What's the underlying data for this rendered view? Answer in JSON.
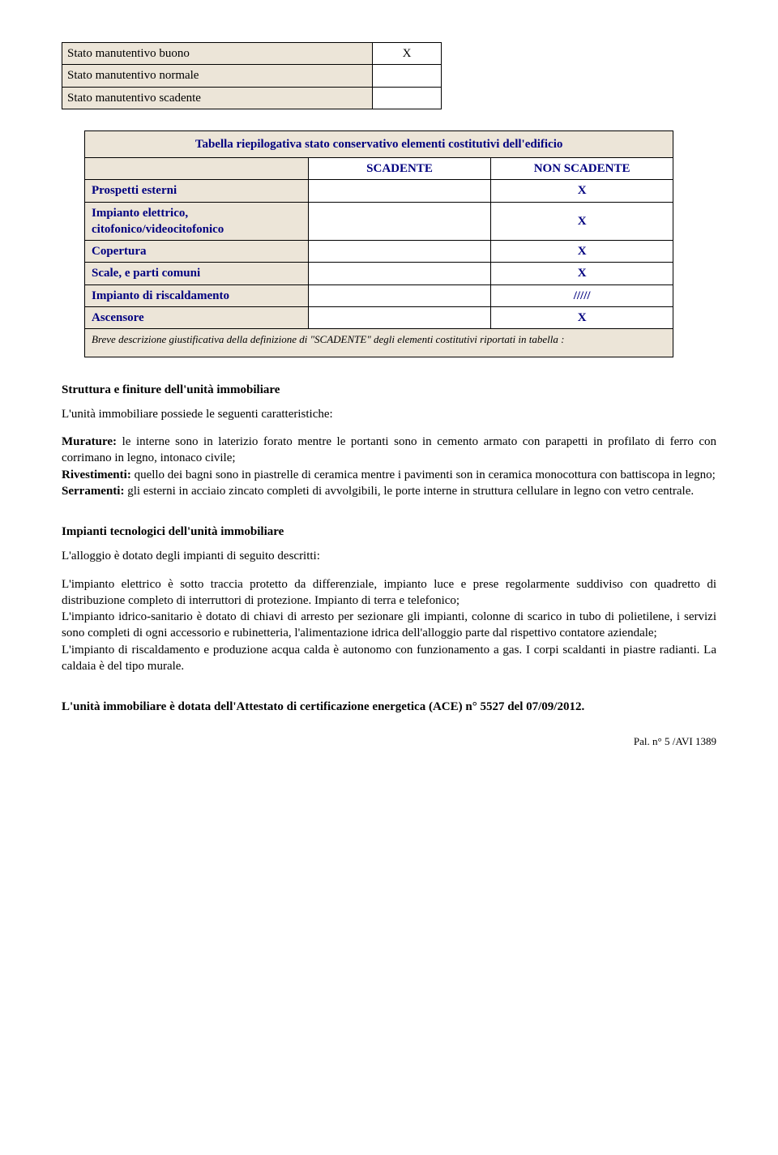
{
  "stato_table": {
    "rows": [
      {
        "label": "Stato manutentivo buono",
        "value": "X"
      },
      {
        "label": "Stato manutentivo normale",
        "value": ""
      },
      {
        "label": "Stato manutentivo scadente",
        "value": ""
      }
    ]
  },
  "riep_table": {
    "title": "Tabella riepilogativa stato conservativo elementi costitutivi dell'edificio",
    "col_scadente": "SCADENTE",
    "col_non_scadente": "NON SCADENTE",
    "rows": [
      {
        "label": "Prospetti esterni",
        "scadente": "",
        "non_scadente": "X"
      },
      {
        "label": "Impianto elettrico, citofonico/videocitofonico",
        "scadente": "",
        "non_scadente": "X"
      },
      {
        "label": "Copertura",
        "scadente": "",
        "non_scadente": "X"
      },
      {
        "label": "Scale, e parti comuni",
        "scadente": "",
        "non_scadente": "X"
      },
      {
        "label": "Impianto di riscaldamento",
        "scadente": "",
        "non_scadente": "/////"
      },
      {
        "label": "Ascensore",
        "scadente": "",
        "non_scadente": "X"
      }
    ],
    "note": "Breve descrizione giustificativa della definizione di \"SCADENTE\" degli elementi costitutivi riportati in tabella :"
  },
  "section1": {
    "heading": "Struttura e finiture dell'unità immobiliare",
    "intro": "L'unità immobiliare possiede le seguenti caratteristiche:",
    "murature_label": "Murature:",
    "murature_text": " le interne sono in laterizio forato mentre le portanti sono in cemento armato con parapetti in profilato di ferro con corrimano in legno, intonaco civile;",
    "rivestimenti_label": "Rivestimenti:",
    "rivestimenti_text": " quello dei bagni sono in piastrelle di ceramica mentre i pavimenti son in ceramica monocottura con battiscopa in legno;",
    "serramenti_label": "Serramenti:",
    "serramenti_text": " gli esterni in acciaio zincato completi di avvolgibili, le porte interne in struttura cellulare in legno con vetro centrale."
  },
  "section2": {
    "heading": "Impianti tecnologici dell'unità immobiliare",
    "intro": "L'alloggio è dotato degli impianti di seguito descritti:",
    "p1": "L'impianto elettrico è sotto traccia protetto da differenziale, impianto luce e prese regolarmente suddiviso con quadretto di distribuzione completo di interruttori di protezione. Impianto di terra e telefonico;",
    "p2": "L'impianto idrico-sanitario è dotato di chiavi di arresto per sezionare gli impianti, colonne di scarico in tubo di polietilene, i servizi sono completi di ogni accessorio e rubinetteria, l'alimentazione idrica dell'alloggio parte dal rispettivo contatore aziendale;",
    "p3": "L'impianto di riscaldamento e produzione acqua calda è autonomo con funzionamento a gas. I corpi scaldanti in piastre radianti. La caldaia è del tipo murale."
  },
  "ace": "L'unità immobiliare è dotata dell'Attestato di certificazione energetica (ACE) n° 5527 del 07/09/2012.",
  "pal": "Pal. n° 5 /AVI 1389"
}
